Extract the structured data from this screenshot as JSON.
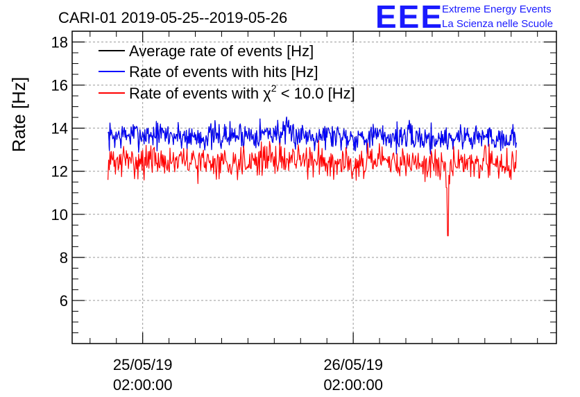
{
  "chart_data": {
    "type": "line",
    "title": "CARI-01 2019-05-25--2019-05-26",
    "ylabel": "Rate [Hz]",
    "xlabel": "",
    "ylim": [
      4,
      18.5
    ],
    "yticks": [
      6,
      8,
      10,
      12,
      14,
      16,
      18
    ],
    "xlim": [
      -0.67,
      3.93
    ],
    "xticks": [
      {
        "value": 0,
        "date": "25/05/19",
        "time": "02:00:00"
      },
      {
        "value": 2,
        "date": "26/05/19",
        "time": "02:00:00"
      }
    ],
    "x_units": "days since 25/05/19 02:00:00",
    "grid": true,
    "legend_position": "top-left",
    "series": [
      {
        "name": "Average rate of events [Hz]",
        "legend_label": "Average rate of events [Hz]",
        "color": "#000000",
        "x_start": -0.33,
        "x_end": 3.55,
        "values": [
          13.6,
          13.7,
          13.7,
          13.6,
          13.6,
          13.7,
          13.8,
          13.7,
          13.7,
          13.6,
          13.6,
          13.6,
          13.5,
          13.6,
          13.6,
          13.5
        ],
        "noise": 0.4
      },
      {
        "name": "Rate of events with hits [Hz]",
        "legend_label": "Rate of events with hits [Hz]",
        "color": "#0000ff",
        "x_start": -0.33,
        "x_end": 3.55,
        "values": [
          13.6,
          13.7,
          13.7,
          13.6,
          13.6,
          13.7,
          13.8,
          13.7,
          13.7,
          13.6,
          13.6,
          13.6,
          13.5,
          13.6,
          13.6,
          13.5
        ],
        "noise": 0.4
      },
      {
        "name": "Rate of events with chi2 < 10.0 [Hz]",
        "legend_prefix": "Rate of events with ",
        "legend_chi": "χ",
        "legend_sup": "2",
        "legend_suffix": " < 10.0 [Hz]",
        "color": "#ff0000",
        "x_start": -0.33,
        "x_end": 3.55,
        "values": [
          12.4,
          12.5,
          12.5,
          12.4,
          12.4,
          12.5,
          12.6,
          12.5,
          12.5,
          12.4,
          12.4,
          12.4,
          12.3,
          12.4,
          12.4,
          12.3
        ],
        "noise": 0.45,
        "dip": {
          "x": 2.9,
          "y": 9.0
        }
      }
    ]
  },
  "branding": {
    "logo": "EEE",
    "line1": "Extreme Energy Events",
    "line2": "La Scienza nelle Scuole"
  }
}
